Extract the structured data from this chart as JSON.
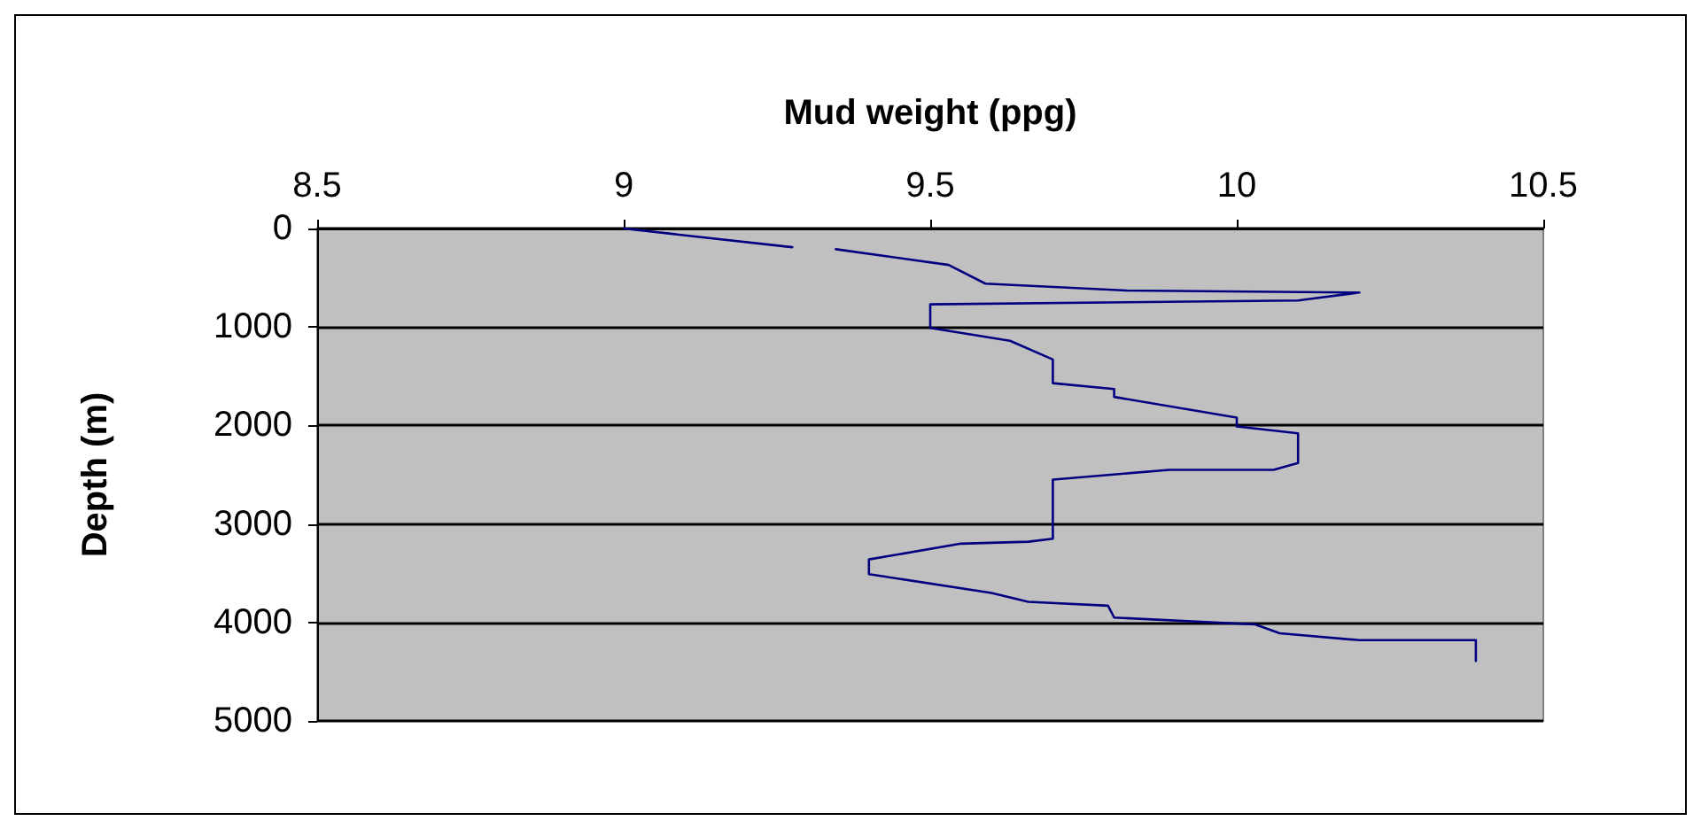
{
  "chart_data": {
    "type": "line",
    "xlabel": "Mud weight (ppg)",
    "ylabel": "Depth (m)",
    "xlim": [
      8.5,
      10.5
    ],
    "xticks": [
      8.5,
      9,
      9.5,
      10,
      10.5
    ],
    "ylim": [
      5000,
      0
    ],
    "yticks": [
      0,
      1000,
      2000,
      3000,
      4000,
      5000
    ],
    "grid": "y",
    "marker": "none",
    "line_style": "solid",
    "series": [
      {
        "color": "#000080",
        "x": [
          9.0,
          9.275,
          9.3,
          9.346,
          9.53,
          9.59,
          9.82,
          10.2,
          10.1,
          9.5,
          9.5,
          9.63,
          9.7,
          9.7,
          9.8,
          9.8,
          10.0,
          10.0,
          10.1,
          10.1,
          10.06,
          9.89,
          9.7,
          9.7,
          9.66,
          9.55,
          9.4,
          9.4,
          9.6,
          9.66,
          9.79,
          9.8,
          10.03,
          10.07,
          10.2,
          10.39,
          10.39
        ],
        "values": [
          0,
          190,
          null,
          210,
          370,
          560,
          630,
          650,
          730,
          770,
          1010,
          1140,
          1330,
          1570,
          1630,
          1710,
          1920,
          2010,
          2080,
          2380,
          2450,
          2450,
          2550,
          3150,
          3180,
          3200,
          3360,
          3510,
          3700,
          3790,
          3830,
          3950,
          4020,
          4110,
          4180,
          4180,
          4390
        ]
      }
    ]
  }
}
